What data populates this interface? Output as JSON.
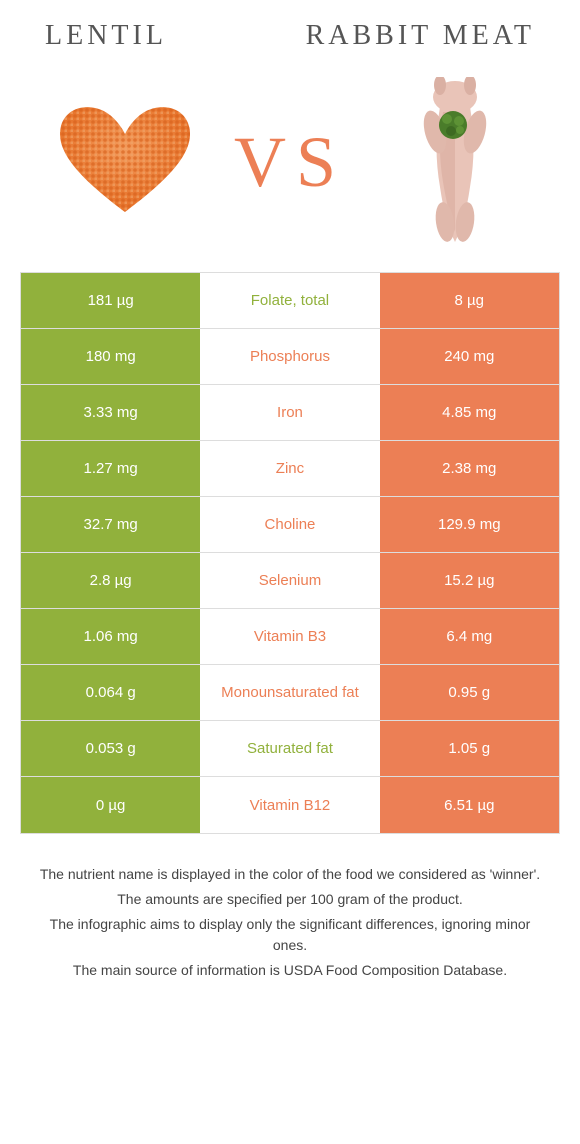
{
  "colors": {
    "lentil": "#91b13c",
    "rabbit": "#ec7f55",
    "vs": "#ec7f55",
    "border": "#dddddd",
    "title": "#555555",
    "footer_text": "#444444",
    "lentil_img": "#e8762e",
    "rabbit_skin": "#e9c4b8",
    "rabbit_dark": "#c97a6a",
    "parsley": "#4a7c2a"
  },
  "header": {
    "left": "Lentil",
    "right": "Rabbit meat",
    "vs": "VS"
  },
  "rows": [
    {
      "left": "181 µg",
      "mid": "Folate, total",
      "right": "8 µg",
      "winner": "lentil"
    },
    {
      "left": "180 mg",
      "mid": "Phosphorus",
      "right": "240 mg",
      "winner": "rabbit"
    },
    {
      "left": "3.33 mg",
      "mid": "Iron",
      "right": "4.85 mg",
      "winner": "rabbit"
    },
    {
      "left": "1.27 mg",
      "mid": "Zinc",
      "right": "2.38 mg",
      "winner": "rabbit"
    },
    {
      "left": "32.7 mg",
      "mid": "Choline",
      "right": "129.9 mg",
      "winner": "rabbit"
    },
    {
      "left": "2.8 µg",
      "mid": "Selenium",
      "right": "15.2 µg",
      "winner": "rabbit"
    },
    {
      "left": "1.06 mg",
      "mid": "Vitamin B3",
      "right": "6.4 mg",
      "winner": "rabbit"
    },
    {
      "left": "0.064 g",
      "mid": "Monounsaturated fat",
      "right": "0.95 g",
      "winner": "rabbit"
    },
    {
      "left": "0.053 g",
      "mid": "Saturated fat",
      "right": "1.05 g",
      "winner": "lentil"
    },
    {
      "left": "0 µg",
      "mid": "Vitamin B12",
      "right": "6.51 µg",
      "winner": "rabbit"
    }
  ],
  "footer": {
    "l1": "The nutrient name is displayed in the color of the food we considered as 'winner'.",
    "l2": "The amounts are specified per 100 gram of the product.",
    "l3": "The infographic aims to display only the significant differences, ignoring minor ones.",
    "l4": "The main source of information is USDA Food Composition Database."
  }
}
